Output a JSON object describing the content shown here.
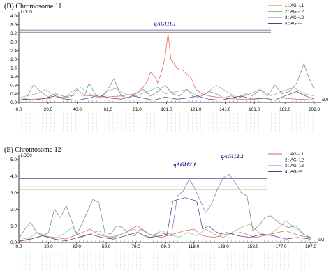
{
  "chart_data": [
    {
      "type": "line",
      "title": "(D) Chromosome 11",
      "ylabel": "LOD0",
      "xlabel": "cM",
      "ylim": [
        0,
        4.0
      ],
      "xlim": [
        0,
        202
      ],
      "yticks": [
        "0.0",
        "0.4",
        "0.8",
        "1.2",
        "1.6",
        "2.0",
        "2.4",
        "2.8",
        "3.2",
        "3.6",
        "4.0"
      ],
      "xticks": [
        "0.0",
        "20.0",
        "40.0",
        "61.0",
        "81.0",
        "101.0",
        "121.0",
        "141.0",
        "161.0",
        "182.0",
        "202.0"
      ],
      "thresholds": [
        {
          "value": 3.25,
          "color": "#8b5a5a"
        },
        {
          "value": 3.35,
          "color": "#6a4a8a"
        }
      ],
      "qtl_labels": [
        {
          "text": "qAGI11.1",
          "x": 100,
          "y": 3.5
        }
      ],
      "legend_position": "top-right",
      "series": [
        {
          "name": "1 : AGI-L1",
          "color": "#e06060",
          "x": [
            0,
            10,
            20,
            30,
            40,
            50,
            60,
            70,
            80,
            85,
            88,
            90,
            93,
            95,
            98,
            100,
            102,
            104,
            106,
            108,
            110,
            112,
            115,
            118,
            121,
            125,
            130,
            140,
            150,
            160,
            170,
            180,
            190,
            202
          ],
          "y": [
            0.12,
            0.15,
            0.18,
            0.25,
            0.35,
            0.3,
            0.25,
            0.3,
            0.4,
            0.7,
            1.0,
            1.4,
            1.2,
            0.9,
            1.5,
            2.1,
            3.2,
            2.0,
            1.8,
            1.6,
            1.5,
            1.5,
            1.3,
            1.1,
            0.6,
            0.4,
            0.3,
            0.2,
            0.15,
            0.15,
            0.2,
            0.2,
            0.15,
            0.12
          ]
        },
        {
          "name": "2 : AGI-L2",
          "color": "#7fc97f",
          "x": [
            0,
            5,
            12,
            18,
            25,
            30,
            36,
            42,
            48,
            55,
            60,
            66,
            72,
            80,
            88,
            95,
            100,
            108,
            115,
            122,
            128,
            135,
            142,
            150,
            158,
            165,
            172,
            180,
            188,
            195,
            202
          ],
          "y": [
            0.2,
            0.3,
            0.4,
            0.6,
            0.3,
            0.15,
            0.5,
            0.7,
            0.4,
            0.2,
            0.5,
            0.65,
            0.4,
            0.3,
            0.5,
            0.7,
            0.4,
            0.5,
            0.6,
            0.3,
            0.4,
            0.8,
            0.5,
            0.2,
            0.4,
            0.6,
            0.3,
            0.5,
            0.7,
            0.4,
            0.3
          ]
        },
        {
          "name": "3 : AGI-L3",
          "color": "#8080a8",
          "x": [
            0,
            5,
            10,
            15,
            20,
            25,
            30,
            35,
            40,
            45,
            48,
            52,
            56,
            60,
            65,
            70,
            75,
            80,
            85,
            90,
            95,
            100,
            105,
            110,
            115,
            120,
            125,
            130,
            135,
            140,
            145,
            150,
            155,
            160,
            165,
            170,
            175,
            180,
            185,
            190,
            195,
            198,
            202
          ],
          "y": [
            0.1,
            0.2,
            0.8,
            0.5,
            0.25,
            0.4,
            0.3,
            0.2,
            0.6,
            0.3,
            0.9,
            0.4,
            0.2,
            0.5,
            1.1,
            0.3,
            0.2,
            0.4,
            0.6,
            0.3,
            0.5,
            0.8,
            0.4,
            0.3,
            0.6,
            0.2,
            0.3,
            0.5,
            0.4,
            0.2,
            0.3,
            0.2,
            0.4,
            0.3,
            0.6,
            0.3,
            0.8,
            0.4,
            0.5,
            0.9,
            1.8,
            1.2,
            0.6
          ]
        },
        {
          "name": "4 : AGI-F",
          "color": "#5a3a8a",
          "x": [
            0,
            5,
            10,
            18,
            25,
            32,
            40,
            48,
            55,
            62,
            70,
            78,
            85,
            92,
            100,
            108,
            115,
            122,
            130,
            138,
            145,
            152,
            160,
            168,
            175,
            182,
            190,
            196,
            202
          ],
          "y": [
            0.1,
            0.15,
            0.1,
            0.2,
            0.3,
            0.15,
            0.1,
            0.2,
            0.35,
            0.2,
            0.15,
            0.3,
            0.2,
            0.1,
            0.25,
            0.15,
            0.2,
            0.3,
            0.15,
            0.1,
            0.2,
            0.3,
            0.15,
            0.2,
            0.1,
            0.3,
            0.5,
            0.3,
            0.15
          ]
        }
      ]
    },
    {
      "type": "line",
      "title": "(E) Chromosome 12",
      "ylabel": "LOD0",
      "xlabel": "cM",
      "ylim": [
        0,
        5.0
      ],
      "xlim": [
        0,
        197
      ],
      "yticks": [
        "0.0",
        "1.0",
        "2.0",
        "3.0",
        "4.0",
        "5.0"
      ],
      "xticks": [
        "0.0",
        "20.0",
        "39.0",
        "59.0",
        "79.0",
        "99.0",
        "118.0",
        "138.0",
        "158.0",
        "177.0",
        "197.0"
      ],
      "thresholds": [
        {
          "value": 3.2,
          "color": "#8b5a5a"
        },
        {
          "value": 3.35,
          "color": "#a05a5a"
        },
        {
          "value": 3.85,
          "color": "#6a4a8a"
        }
      ],
      "qtl_labels": [
        {
          "text": "qAGI12.1",
          "x": 112,
          "y": 4.5
        },
        {
          "text": "qAGI12.2",
          "x": 144,
          "y": 5.0
        }
      ],
      "legend_position": "top-right",
      "series": [
        {
          "name": "1 : AGI-L1",
          "color": "#e06060",
          "x": [
            0,
            8,
            16,
            24,
            32,
            40,
            48,
            56,
            64,
            72,
            80,
            88,
            96,
            104,
            112,
            118,
            124,
            132,
            140,
            150,
            160,
            170,
            180,
            190,
            197
          ],
          "y": [
            0.05,
            0.2,
            0.4,
            0.3,
            0.2,
            0.5,
            0.8,
            0.4,
            0.3,
            0.6,
            1.0,
            0.5,
            0.3,
            0.5,
            0.7,
            0.8,
            0.4,
            0.3,
            0.5,
            0.6,
            0.3,
            0.5,
            0.7,
            0.4,
            0.3
          ]
        },
        {
          "name": "2 : AGI-L2",
          "color": "#7fc97f",
          "x": [
            0,
            6,
            12,
            18,
            24,
            30,
            36,
            42,
            48,
            54,
            60,
            66,
            72,
            78,
            84,
            90,
            96,
            102,
            108,
            114,
            120,
            126,
            132,
            138,
            144,
            150,
            156,
            162,
            168,
            174,
            180,
            186,
            192,
            197
          ],
          "y": [
            0.3,
            0.2,
            0.6,
            0.4,
            0.2,
            0.5,
            0.9,
            0.3,
            0.5,
            0.7,
            0.3,
            0.4,
            0.6,
            0.8,
            0.4,
            0.3,
            0.7,
            0.5,
            0.3,
            0.6,
            0.4,
            0.8,
            0.5,
            0.3,
            0.6,
            0.9,
            1.1,
            0.6,
            0.4,
            0.8,
            1.3,
            0.9,
            0.5,
            0.3
          ]
        },
        {
          "name": "3 : AGI-L3",
          "color": "#8080a8",
          "x": [
            0,
            4,
            8,
            12,
            16,
            20,
            24,
            28,
            32,
            36,
            39,
            42,
            46,
            50,
            54,
            58,
            62,
            66,
            70,
            74,
            78,
            82,
            86,
            90,
            94,
            99,
            103,
            107,
            111,
            115,
            118,
            122,
            126,
            130,
            134,
            138,
            142,
            146,
            150,
            154,
            158,
            162,
            166,
            170,
            174,
            177,
            182,
            187,
            192,
            197
          ],
          "y": [
            0.2,
            0.8,
            1.2,
            0.6,
            0.4,
            0.6,
            2.0,
            1.5,
            2.2,
            1.2,
            0.5,
            1.0,
            1.8,
            2.6,
            2.4,
            0.6,
            0.5,
            1.0,
            0.9,
            0.5,
            0.4,
            0.8,
            0.6,
            0.4,
            0.6,
            0.5,
            0.4,
            2.8,
            3.1,
            3.8,
            3.4,
            2.6,
            1.8,
            2.3,
            3.2,
            3.9,
            4.1,
            3.6,
            3.0,
            2.8,
            0.7,
            1.0,
            1.5,
            1.6,
            1.3,
            1.1,
            0.9,
            1.0,
            0.5,
            0.3
          ]
        },
        {
          "name": "4 : AGI-F",
          "color": "#5a3a8a",
          "x": [
            0,
            8,
            16,
            24,
            32,
            40,
            48,
            56,
            64,
            72,
            80,
            88,
            96,
            100,
            104,
            108,
            112,
            116,
            120,
            124,
            128,
            132,
            136,
            140,
            148,
            156,
            164,
            172,
            180,
            188,
            197
          ],
          "y": [
            0.1,
            0.2,
            0.4,
            0.2,
            0.1,
            0.3,
            0.5,
            0.3,
            0.2,
            0.4,
            0.6,
            0.3,
            0.4,
            0.5,
            2.5,
            2.6,
            2.7,
            2.6,
            2.5,
            0.8,
            1.0,
            0.7,
            0.5,
            0.6,
            0.4,
            0.3,
            0.5,
            0.4,
            0.2,
            0.3,
            0.2
          ]
        }
      ]
    }
  ],
  "colors": {
    "axis": "#000000",
    "qtl_label": "#1a1a8c"
  }
}
